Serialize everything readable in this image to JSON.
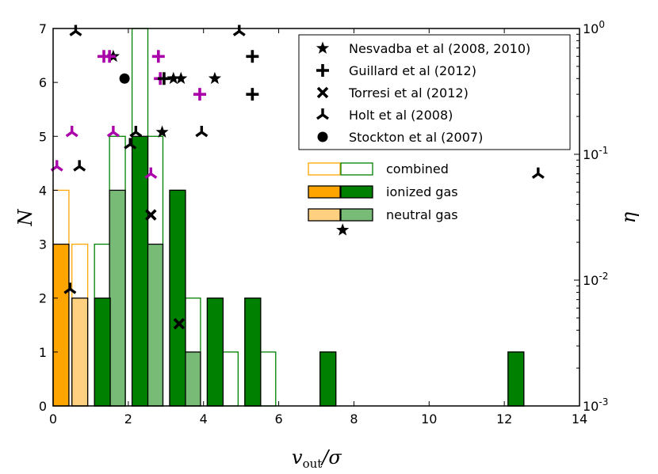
{
  "chart_data": {
    "type": "bar",
    "xlabel_main": "v",
    "xlabel_sub": "out",
    "xlabel_tail": "/σ",
    "ylabel": "N",
    "y2label": "η",
    "xlim": [
      0,
      14
    ],
    "ylim": [
      0,
      7
    ],
    "y2lim_log10": [
      -3,
      0
    ],
    "x_ticks": [
      "0",
      "2",
      "4",
      "6",
      "8",
      "10",
      "12",
      "14"
    ],
    "y_ticks": [
      "0",
      "1",
      "2",
      "3",
      "4",
      "5",
      "6",
      "7"
    ],
    "y2_ticks": [
      {
        "base": "10",
        "exp": "-3",
        "log": -3
      },
      {
        "base": "10",
        "exp": "-2",
        "log": -2
      },
      {
        "base": "10",
        "exp": "-1",
        "log": -1
      },
      {
        "base": "10",
        "exp": "0",
        "log": 0
      }
    ],
    "bin_width": 0.42,
    "histograms": [
      {
        "name": "combined (low σ)",
        "group": "low",
        "kind": "combined",
        "color": "#FFA500",
        "bins": [
          {
            "x0": 0.0,
            "v": 4
          },
          {
            "x0": 0.5,
            "v": 3
          }
        ]
      },
      {
        "name": "ionized gas (low σ)",
        "group": "low",
        "kind": "ionized",
        "color": "#FFA500",
        "bins": [
          {
            "x0": 0.0,
            "v": 3
          }
        ]
      },
      {
        "name": "neutral gas (low σ)",
        "group": "low",
        "kind": "neutral",
        "color": "#FFD080",
        "bins": [
          {
            "x0": 0.5,
            "v": 2
          }
        ]
      },
      {
        "name": "combined (high σ)",
        "group": "high",
        "kind": "combined",
        "color": "#008000",
        "bins": [
          {
            "x0": 1.1,
            "v": 3
          },
          {
            "x0": 1.5,
            "v": 5
          },
          {
            "x0": 2.1,
            "v": 7
          },
          {
            "x0": 2.5,
            "v": 5
          },
          {
            "x0": 3.1,
            "v": 4
          },
          {
            "x0": 3.5,
            "v": 2
          },
          {
            "x0": 4.1,
            "v": 2
          },
          {
            "x0": 4.5,
            "v": 1
          },
          {
            "x0": 5.1,
            "v": 2
          },
          {
            "x0": 5.5,
            "v": 1
          },
          {
            "x0": 7.1,
            "v": 1
          },
          {
            "x0": 12.1,
            "v": 1
          }
        ]
      },
      {
        "name": "ionized gas (high σ)",
        "group": "high",
        "kind": "ionized",
        "color": "#008000",
        "bins": [
          {
            "x0": 1.1,
            "v": 2
          },
          {
            "x0": 2.1,
            "v": 5
          },
          {
            "x0": 3.1,
            "v": 4
          },
          {
            "x0": 4.1,
            "v": 2
          },
          {
            "x0": 5.1,
            "v": 2
          },
          {
            "x0": 7.1,
            "v": 1
          },
          {
            "x0": 12.1,
            "v": 1
          }
        ]
      },
      {
        "name": "neutral gas (high σ)",
        "group": "high",
        "kind": "neutral",
        "color": "#77BB77",
        "bins": [
          {
            "x0": 1.5,
            "v": 4
          },
          {
            "x0": 2.5,
            "v": 3
          },
          {
            "x0": 3.5,
            "v": 1
          }
        ]
      }
    ],
    "scatter_series": [
      {
        "name": "Nesvadba et al (2008, 2010)",
        "marker": "star",
        "points": [
          {
            "x": 1.6,
            "eta": 0.6,
            "c": "#000"
          },
          {
            "x": 2.9,
            "eta": 0.15,
            "c": "#000"
          },
          {
            "x": 3.2,
            "eta": 0.4,
            "c": "#000"
          },
          {
            "x": 3.4,
            "eta": 0.4,
            "c": "#000"
          },
          {
            "x": 4.3,
            "eta": 0.4,
            "c": "#000"
          },
          {
            "x": 7.7,
            "eta": 0.025,
            "c": "#000"
          }
        ]
      },
      {
        "name": "Guillard et al (2012)",
        "marker": "plus",
        "points": [
          {
            "x": 1.35,
            "eta": 0.6,
            "c": "#AA00AA"
          },
          {
            "x": 1.5,
            "eta": 0.6,
            "c": "#AA00AA"
          },
          {
            "x": 2.8,
            "eta": 0.6,
            "c": "#AA00AA"
          },
          {
            "x": 2.85,
            "eta": 0.4,
            "c": "#AA00AA"
          },
          {
            "x": 2.95,
            "eta": 0.4,
            "c": "#000"
          },
          {
            "x": 3.9,
            "eta": 0.3,
            "c": "#AA00AA"
          },
          {
            "x": 5.3,
            "eta": 0.6,
            "c": "#000"
          },
          {
            "x": 5.3,
            "eta": 0.3,
            "c": "#000"
          }
        ]
      },
      {
        "name": "Torresi et al (2012)",
        "marker": "x",
        "points": [
          {
            "x": 2.6,
            "eta": 0.033,
            "c": "#000"
          },
          {
            "x": 3.35,
            "eta": 0.0045,
            "c": "#000"
          }
        ]
      },
      {
        "name": "Holt et al (2008)",
        "marker": "tri",
        "points": [
          {
            "x": 0.6,
            "eta": 0.95,
            "c": "#000"
          },
          {
            "x": 4.95,
            "eta": 0.95,
            "c": "#000"
          },
          {
            "x": 0.5,
            "eta": 0.15,
            "c": "#AA00AA"
          },
          {
            "x": 1.6,
            "eta": 0.15,
            "c": "#AA00AA"
          },
          {
            "x": 2.2,
            "eta": 0.15,
            "c": "#000"
          },
          {
            "x": 2.05,
            "eta": 0.12,
            "c": "#000"
          },
          {
            "x": 3.95,
            "eta": 0.15,
            "c": "#000"
          },
          {
            "x": 0.1,
            "eta": 0.08,
            "c": "#AA00AA"
          },
          {
            "x": 0.7,
            "eta": 0.08,
            "c": "#000"
          },
          {
            "x": 2.6,
            "eta": 0.07,
            "c": "#AA00AA"
          },
          {
            "x": 0.45,
            "eta": 0.0085,
            "c": "#000"
          },
          {
            "x": 12.9,
            "eta": 0.07,
            "c": "#000"
          }
        ]
      },
      {
        "name": "Stockton et al (2007)",
        "marker": "circle",
        "points": [
          {
            "x": 1.9,
            "eta": 0.4,
            "c": "#000"
          }
        ]
      }
    ],
    "hist_legend": [
      {
        "label": "combined",
        "kind": "combined"
      },
      {
        "label": "ionized gas",
        "kind": "ionized"
      },
      {
        "label": "neutral gas",
        "kind": "neutral"
      }
    ],
    "hist_legend_colors": {
      "low_outline": "#FFA500",
      "high_outline": "#008000",
      "low_ionized": "#FFA500",
      "high_ionized": "#008000",
      "low_neutral": "#FFD080",
      "high_neutral": "#77BB77"
    }
  }
}
